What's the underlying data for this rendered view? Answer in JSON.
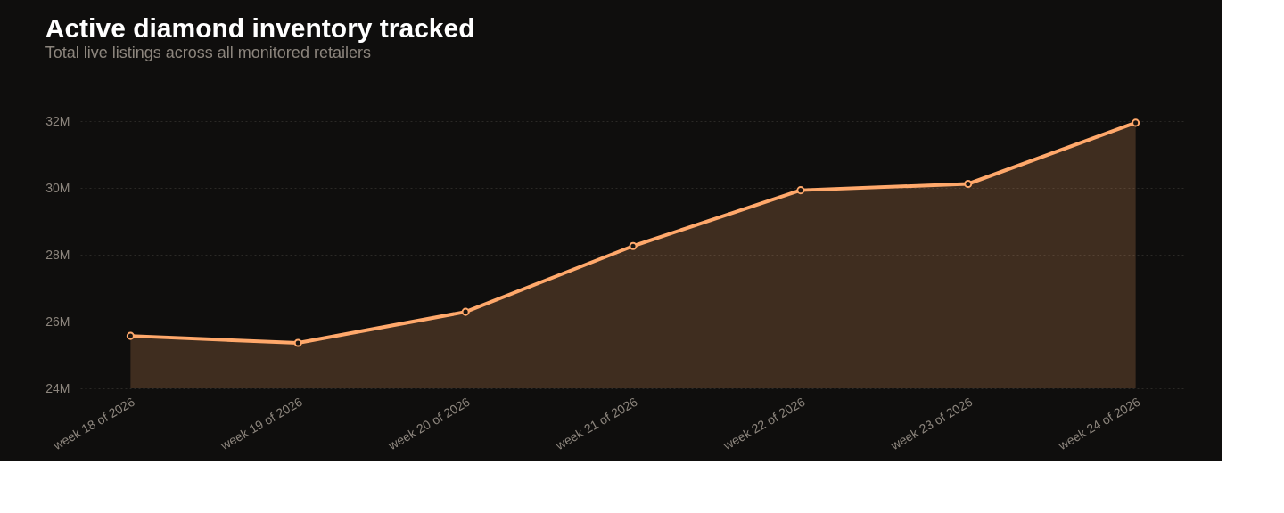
{
  "chart_data": {
    "type": "area",
    "title": "Active diamond inventory tracked",
    "subtitle": "Total live listings across all monitored retailers",
    "categories": [
      "week 18 of 2026",
      "week 19 of 2026",
      "week 20 of 2026",
      "week 21 of 2026",
      "week 22 of 2026",
      "week 23 of 2026",
      "week 24 of 2026"
    ],
    "series": [
      {
        "color": "#ffa86b",
        "values": [
          25.57,
          25.36,
          26.29,
          28.26,
          29.93,
          30.12,
          31.95
        ]
      }
    ],
    "ylim": [
      24,
      32
    ],
    "yticks": [
      {
        "value": 24,
        "label": "24M"
      },
      {
        "value": 26,
        "label": "26M"
      },
      {
        "value": 28,
        "label": "28M"
      },
      {
        "value": 30,
        "label": "30M"
      },
      {
        "value": 32,
        "label": "32M"
      }
    ],
    "grid": "y",
    "marker": "circle",
    "line_style": "solid"
  }
}
